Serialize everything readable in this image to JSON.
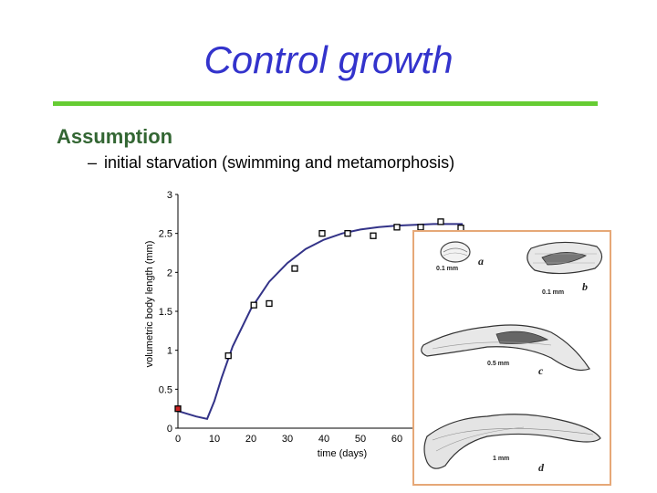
{
  "slide": {
    "title": "Control growth",
    "heading": "Assumption",
    "bullet_dash": "–",
    "bullet_text": "initial starvation (swimming and metamorphosis)"
  },
  "chart_data": {
    "type": "scatter",
    "title": "",
    "xlabel": "time (days)",
    "ylabel": "volumetric body length (mm)",
    "xlim": [
      0,
      80
    ],
    "ylim": [
      0,
      3
    ],
    "x_ticks": [
      "0",
      "10",
      "20",
      "30",
      "40",
      "50",
      "60"
    ],
    "y_ticks": [
      "0",
      "0.5",
      "1",
      "1.5",
      "2",
      "2.5",
      "3"
    ],
    "x_tick_values": [
      0,
      10,
      20,
      30,
      40,
      50,
      60
    ],
    "y_tick_values": [
      0,
      0.5,
      1,
      1.5,
      2,
      2.5,
      3
    ],
    "series": [
      {
        "type": "scatter",
        "marker": "open-square",
        "color": "#000000",
        "x": [
          0,
          13.8,
          20.8,
          25,
          32,
          39.5,
          46.5,
          53.5,
          60,
          66.5,
          72,
          77.5
        ],
        "y": [
          0.25,
          0.93,
          1.58,
          1.6,
          2.05,
          2.5,
          2.5,
          2.47,
          2.58,
          2.58,
          2.65,
          2.57
        ]
      },
      {
        "type": "line",
        "color": "#333388",
        "x": [
          0,
          5,
          8,
          10,
          12,
          15,
          20,
          25,
          30,
          35,
          40,
          45,
          50,
          55,
          60,
          65,
          70,
          75,
          78
        ],
        "y": [
          0.22,
          0.15,
          0.12,
          0.35,
          0.65,
          1.05,
          1.53,
          1.88,
          2.12,
          2.3,
          2.42,
          2.5,
          2.55,
          2.58,
          2.6,
          2.61,
          2.62,
          2.62,
          2.62
        ]
      }
    ],
    "highlight_point": {
      "x": 0,
      "y": 0.25,
      "color": "#cc2222"
    },
    "grid": false
  },
  "illustration": {
    "labels": {
      "a": "a",
      "b": "b",
      "c": "c",
      "d": "d",
      "scale_a": "0.1 mm",
      "scale_b": "0.1 mm",
      "scale_c": "0.5 mm",
      "scale_d": "1 mm"
    },
    "border_color": "#e6a877"
  }
}
